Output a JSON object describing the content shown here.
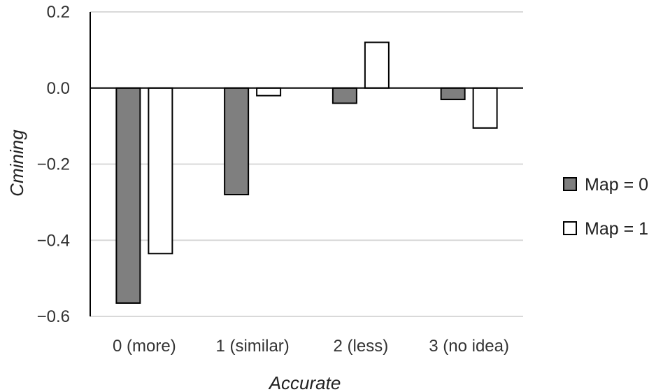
{
  "chart_data": {
    "type": "bar",
    "xlabel": "Accurate",
    "ylabel": "Cmining",
    "ylim": [
      -0.6,
      0.2
    ],
    "yticks": [
      0.2,
      0.0,
      -0.2,
      -0.4,
      -0.6
    ],
    "ytick_labels": [
      "0.2",
      "0.0",
      "−0.2",
      "−0.4",
      "−0.6"
    ],
    "grid": true,
    "legend_position": "right",
    "categories": [
      "0 (more)",
      "1 (similar)",
      "2 (less)",
      "3 (no idea)"
    ],
    "series": [
      {
        "name": "Map = 0",
        "color": "#7f7f7f",
        "values": [
          -0.565,
          -0.28,
          -0.04,
          -0.03
        ]
      },
      {
        "name": "Map = 1",
        "color": "#ffffff",
        "values": [
          -0.435,
          -0.02,
          0.12,
          -0.105
        ]
      }
    ]
  }
}
